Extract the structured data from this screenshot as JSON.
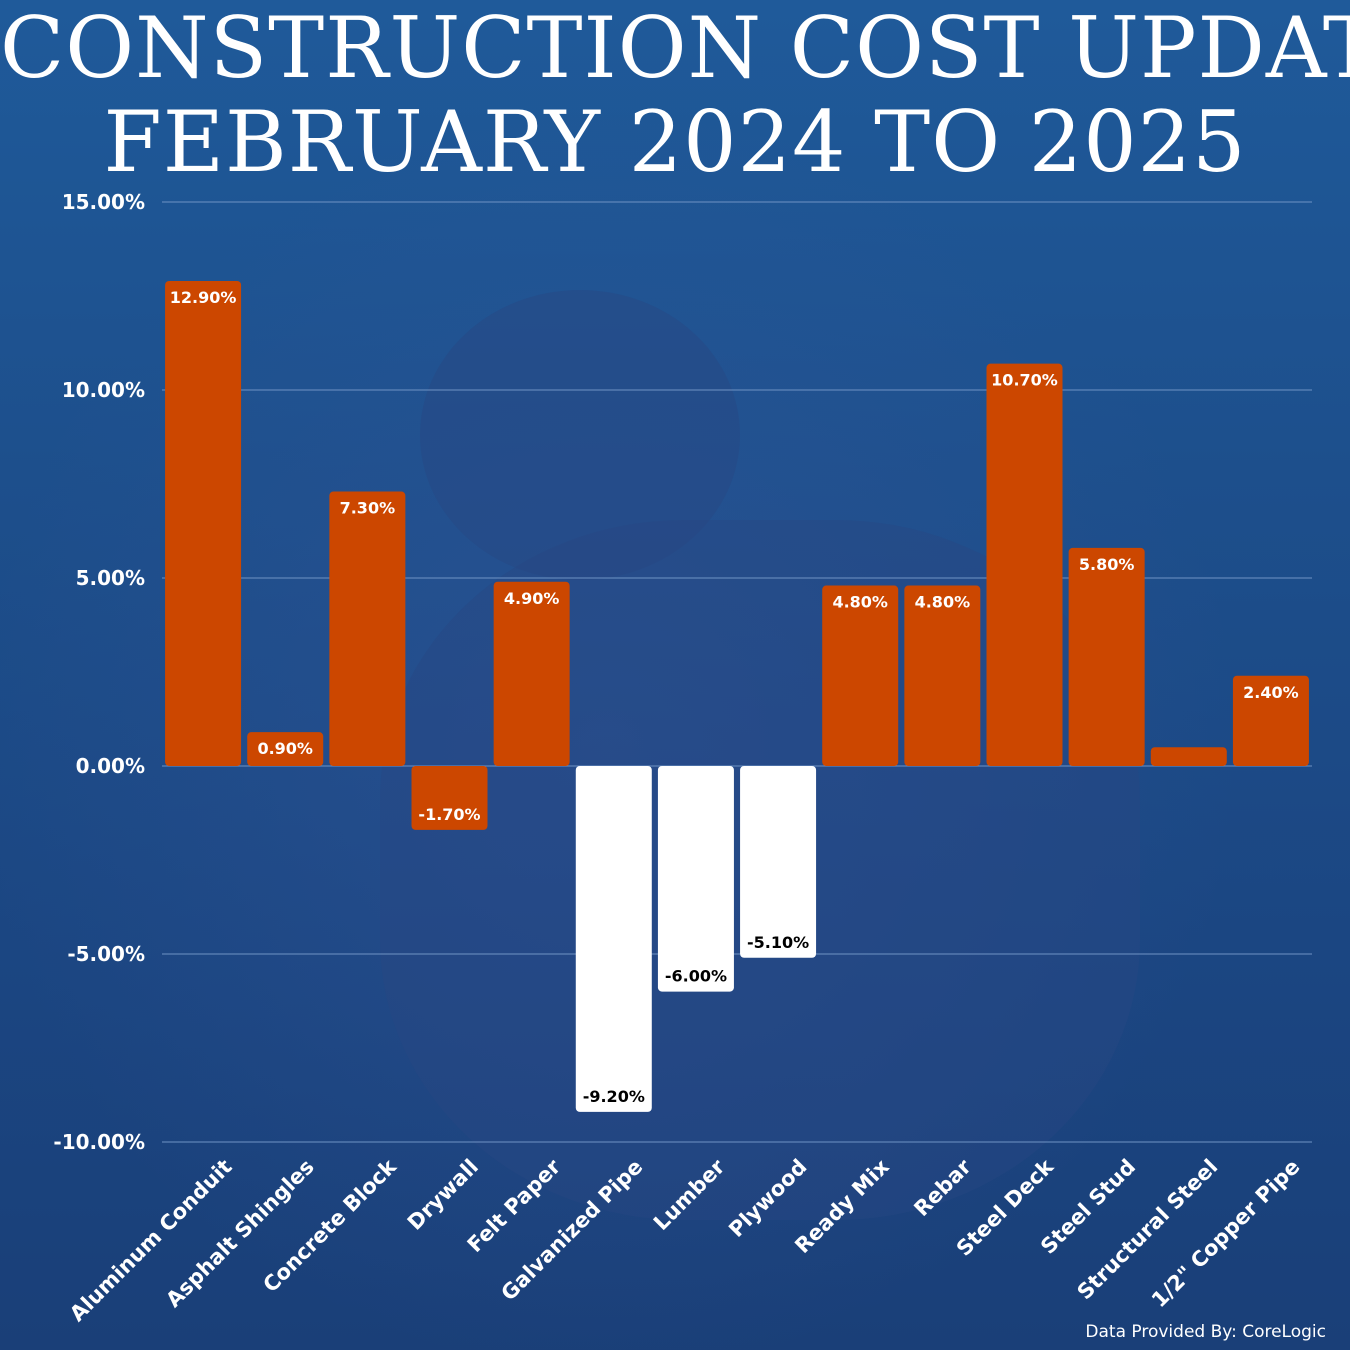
{
  "title_line1": "CONSTRUCTION COST UPDATE",
  "title_line2": "FEBRUARY 2024 TO 2025",
  "source": "Data Provided By: CoreLogic",
  "colors": {
    "positive_bar": "#cc4700",
    "negative_small_bar": "#cc4700",
    "negative_large_bar": "#ffffff",
    "label_on_orange": "#ffffff",
    "label_on_white": "#000000",
    "axis_text": "#ffffff",
    "gridline": "#6f93c4"
  },
  "chart_data": {
    "type": "bar",
    "title": "",
    "xlabel": "",
    "ylabel": "",
    "ylim": [
      -10,
      15
    ],
    "yticks": [
      {
        "value": 15,
        "label": "15.00%"
      },
      {
        "value": 10,
        "label": "10.00%"
      },
      {
        "value": 5,
        "label": "5.00%"
      },
      {
        "value": 0,
        "label": "0.00%"
      },
      {
        "value": -5,
        "label": "-5.00%"
      },
      {
        "value": -10,
        "label": "-10.00%"
      }
    ],
    "grid": true,
    "categories": [
      "Aluminum Conduit",
      "Asphalt Shingles",
      "Concrete Block",
      "Drywall",
      "Felt Paper",
      "Galvanized Pipe",
      "Lumber",
      "Plywood",
      "Ready Mix",
      "Rebar",
      "Steel Deck",
      "Steel Stud",
      "Structural Steel",
      "1/2\" Copper Pipe"
    ],
    "values": [
      12.9,
      0.9,
      7.3,
      -1.7,
      4.9,
      -9.2,
      -6.0,
      -5.1,
      4.8,
      4.8,
      10.7,
      5.8,
      0.5,
      2.4
    ],
    "data_labels": [
      "12.90%",
      "0.90%",
      "7.30%",
      "-1.70%",
      "4.90%",
      "-9.20%",
      "-6.00%",
      "-5.10%",
      "4.80%",
      "4.80%",
      "10.70%",
      "5.80%",
      "",
      "2.40%"
    ],
    "bar_style": [
      "orange",
      "orange",
      "orange",
      "orange",
      "orange",
      "white",
      "white",
      "white",
      "orange",
      "orange",
      "orange",
      "orange",
      "orange",
      "orange"
    ]
  }
}
